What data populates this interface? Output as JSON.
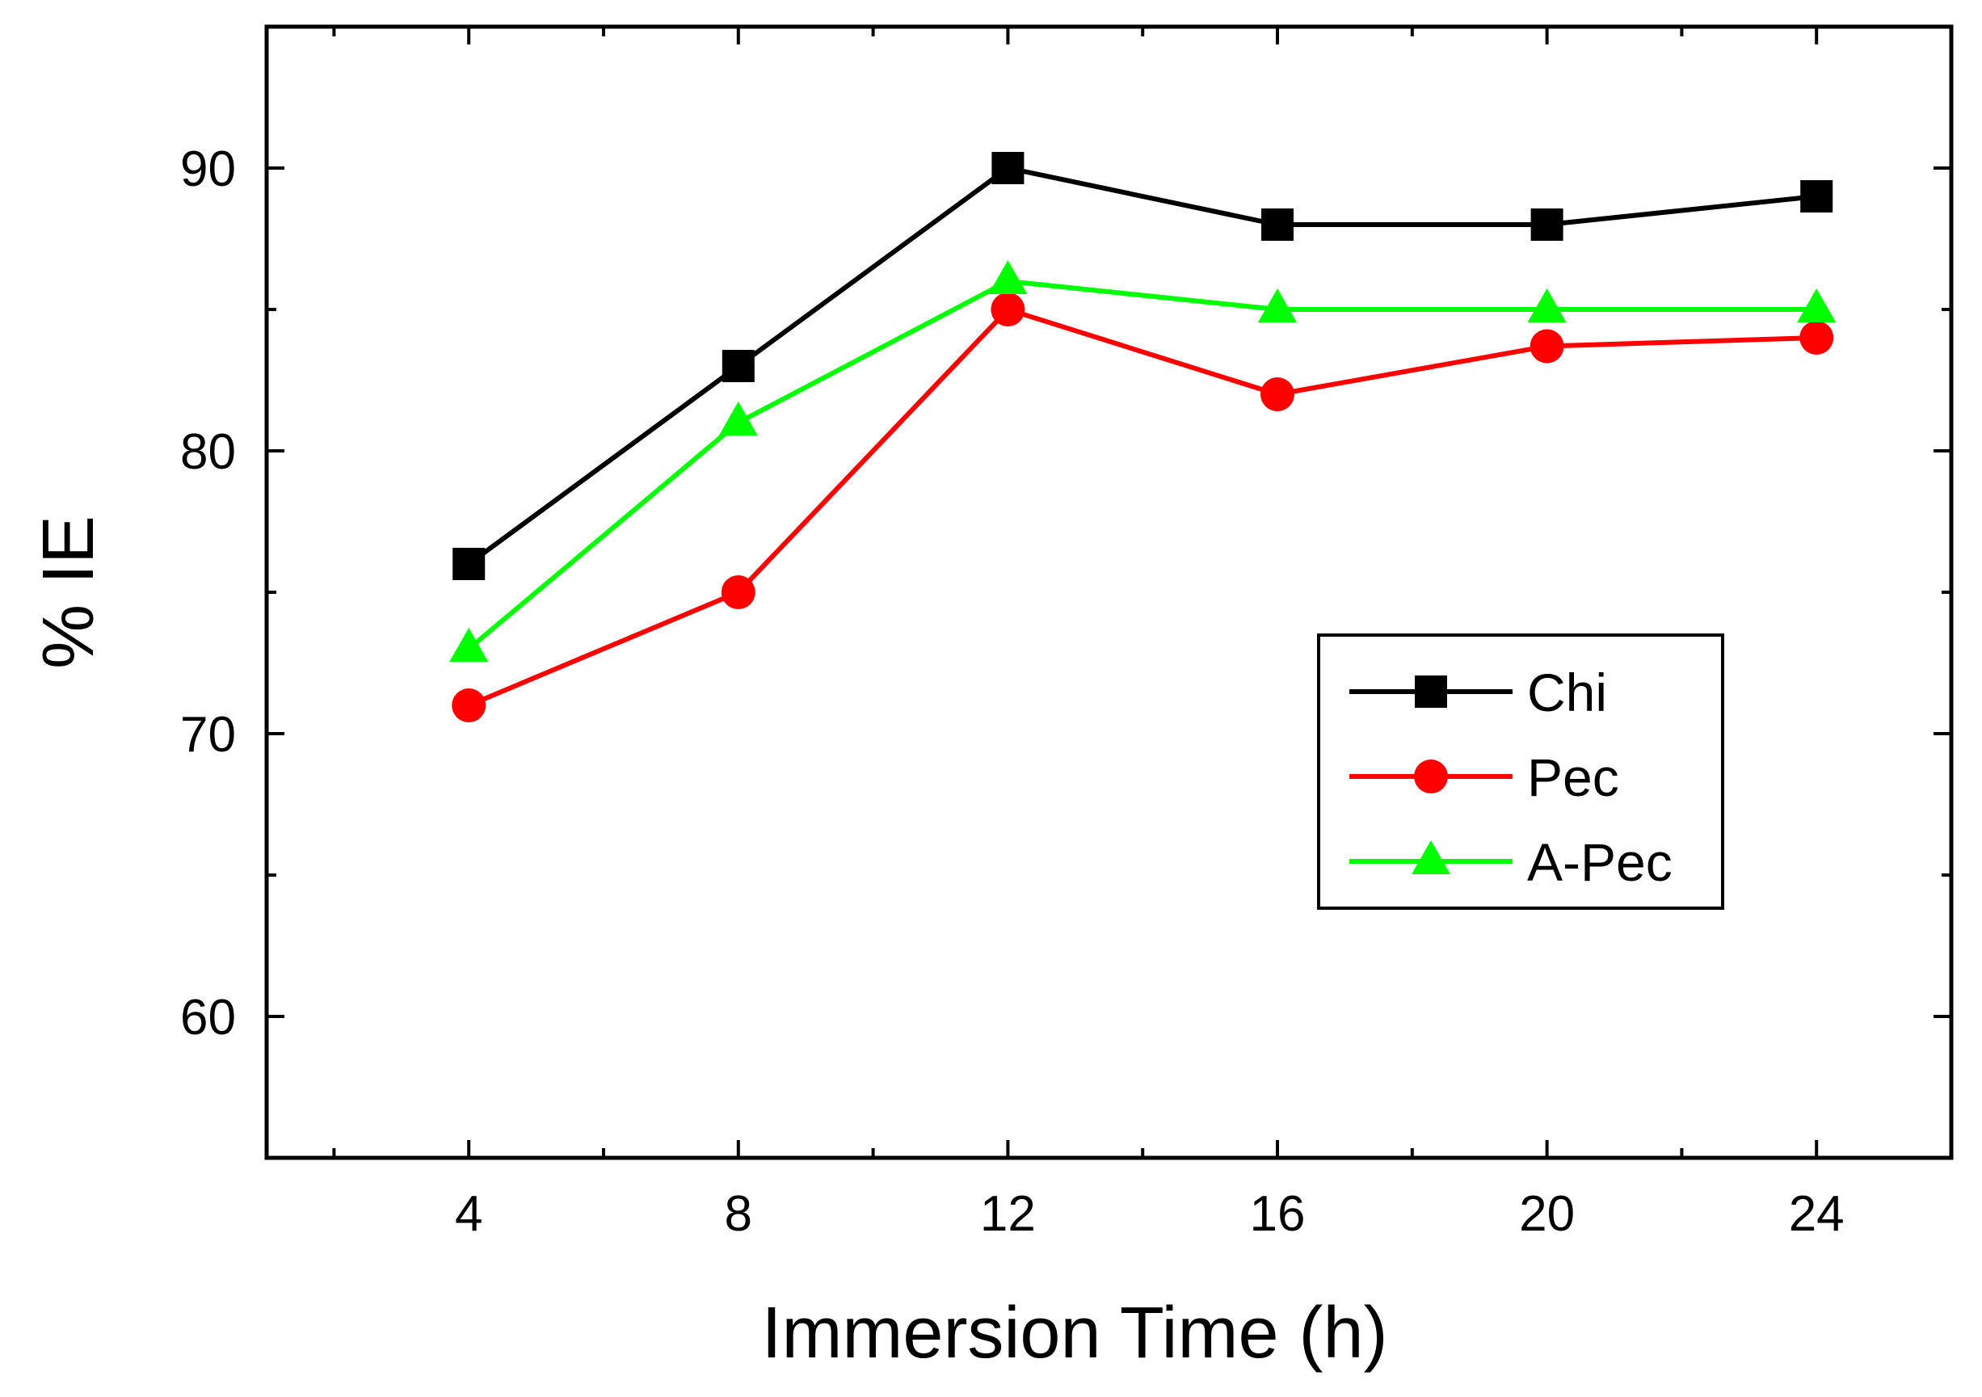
{
  "chart_data": {
    "type": "line",
    "xlabel": "Immersion Time (h)",
    "ylabel": "% IE",
    "xlim": [
      1,
      26
    ],
    "ylim": [
      55,
      95
    ],
    "x_ticks": [
      4,
      8,
      12,
      16,
      20,
      24
    ],
    "x_minor_ticks": [
      2,
      6,
      10,
      14,
      18,
      22
    ],
    "y_ticks": [
      60,
      70,
      80,
      90
    ],
    "y_minor_ticks": [
      65,
      75,
      85
    ],
    "grid": false,
    "legend_position": "inside right",
    "x": [
      4,
      8,
      12,
      16,
      20,
      24
    ],
    "series": [
      {
        "name": "Chi",
        "color": "#000000",
        "marker": "square",
        "values": [
          76,
          83,
          90,
          88,
          88,
          89
        ]
      },
      {
        "name": "Pec",
        "color": "#ff0000",
        "marker": "circle",
        "values": [
          71,
          75,
          85,
          82,
          83.7,
          84
        ]
      },
      {
        "name": "A-Pec",
        "color": "#00ff00",
        "marker": "triangle",
        "values": [
          73,
          81,
          86,
          85,
          85,
          85
        ]
      }
    ]
  }
}
